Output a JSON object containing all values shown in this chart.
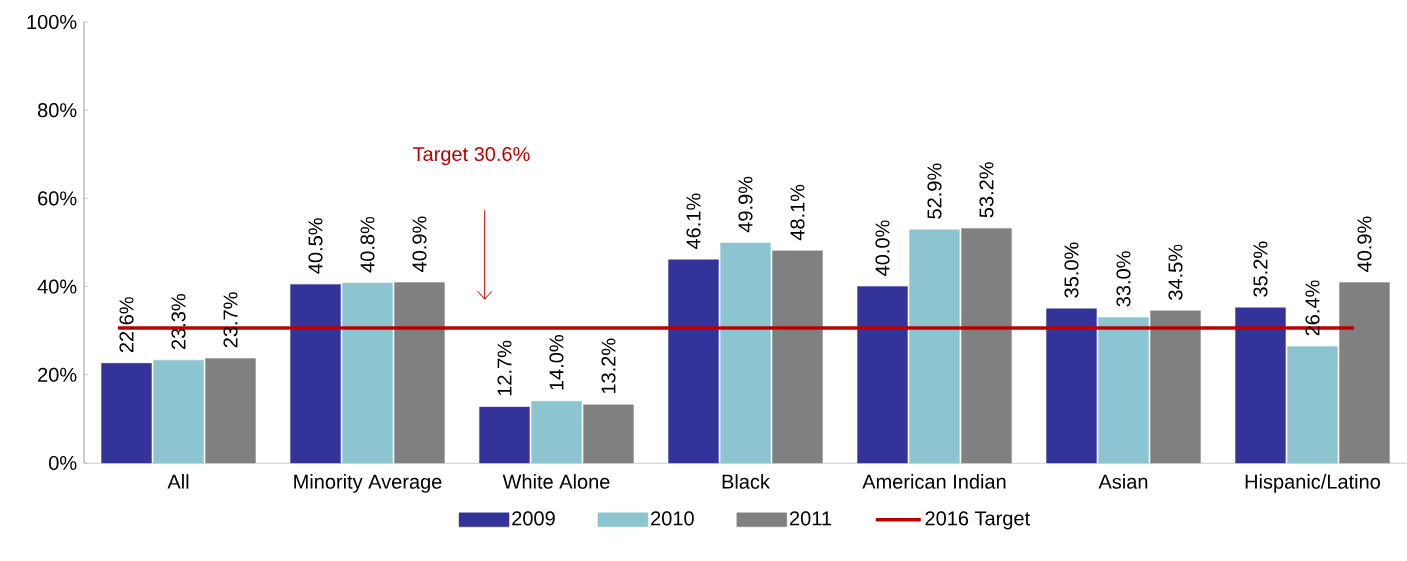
{
  "chart_data": {
    "type": "bar",
    "categories": [
      "All",
      "Minority Average",
      "White Alone",
      "Black",
      "American Indian",
      "Asian",
      "Hispanic/Latino"
    ],
    "series": [
      {
        "name": "2009",
        "color": "#333399",
        "values": [
          22.6,
          40.5,
          12.7,
          46.1,
          40.0,
          35.0,
          35.2
        ],
        "value_labels": [
          "22.6%",
          "40.5%",
          "12.7%",
          "46.1%",
          "40.0%",
          "35.0%",
          "35.2%"
        ]
      },
      {
        "name": "2010",
        "color": "#8cc5cf",
        "values": [
          23.3,
          40.8,
          14.0,
          49.9,
          52.9,
          33.0,
          26.4
        ],
        "value_labels": [
          "23.3%",
          "40.8%",
          "14.0%",
          "49.9%",
          "52.9%",
          "33.0%",
          "26.4%"
        ]
      },
      {
        "name": "2011",
        "color": "#808080",
        "values": [
          23.7,
          40.9,
          13.2,
          48.1,
          53.2,
          34.5,
          40.9
        ],
        "value_labels": [
          "23.7%",
          "40.9%",
          "13.2%",
          "48.1%",
          "53.2%",
          "34.5%",
          "40.9%"
        ]
      }
    ],
    "ylim": [
      0,
      100
    ],
    "yticks": [
      {
        "value": 0,
        "label": "0%"
      },
      {
        "value": 20,
        "label": "20%"
      },
      {
        "value": 40,
        "label": "40%"
      },
      {
        "value": 60,
        "label": "60%"
      },
      {
        "value": 80,
        "label": "80%"
      },
      {
        "value": 100,
        "label": "100%"
      }
    ],
    "ref_lines": [
      {
        "axis": "y",
        "value": 30.6,
        "label": "2016 Target",
        "color": "#c00000"
      }
    ],
    "annotations": [
      "Target 30.6%"
    ],
    "legend": "bottom",
    "grid": false
  }
}
